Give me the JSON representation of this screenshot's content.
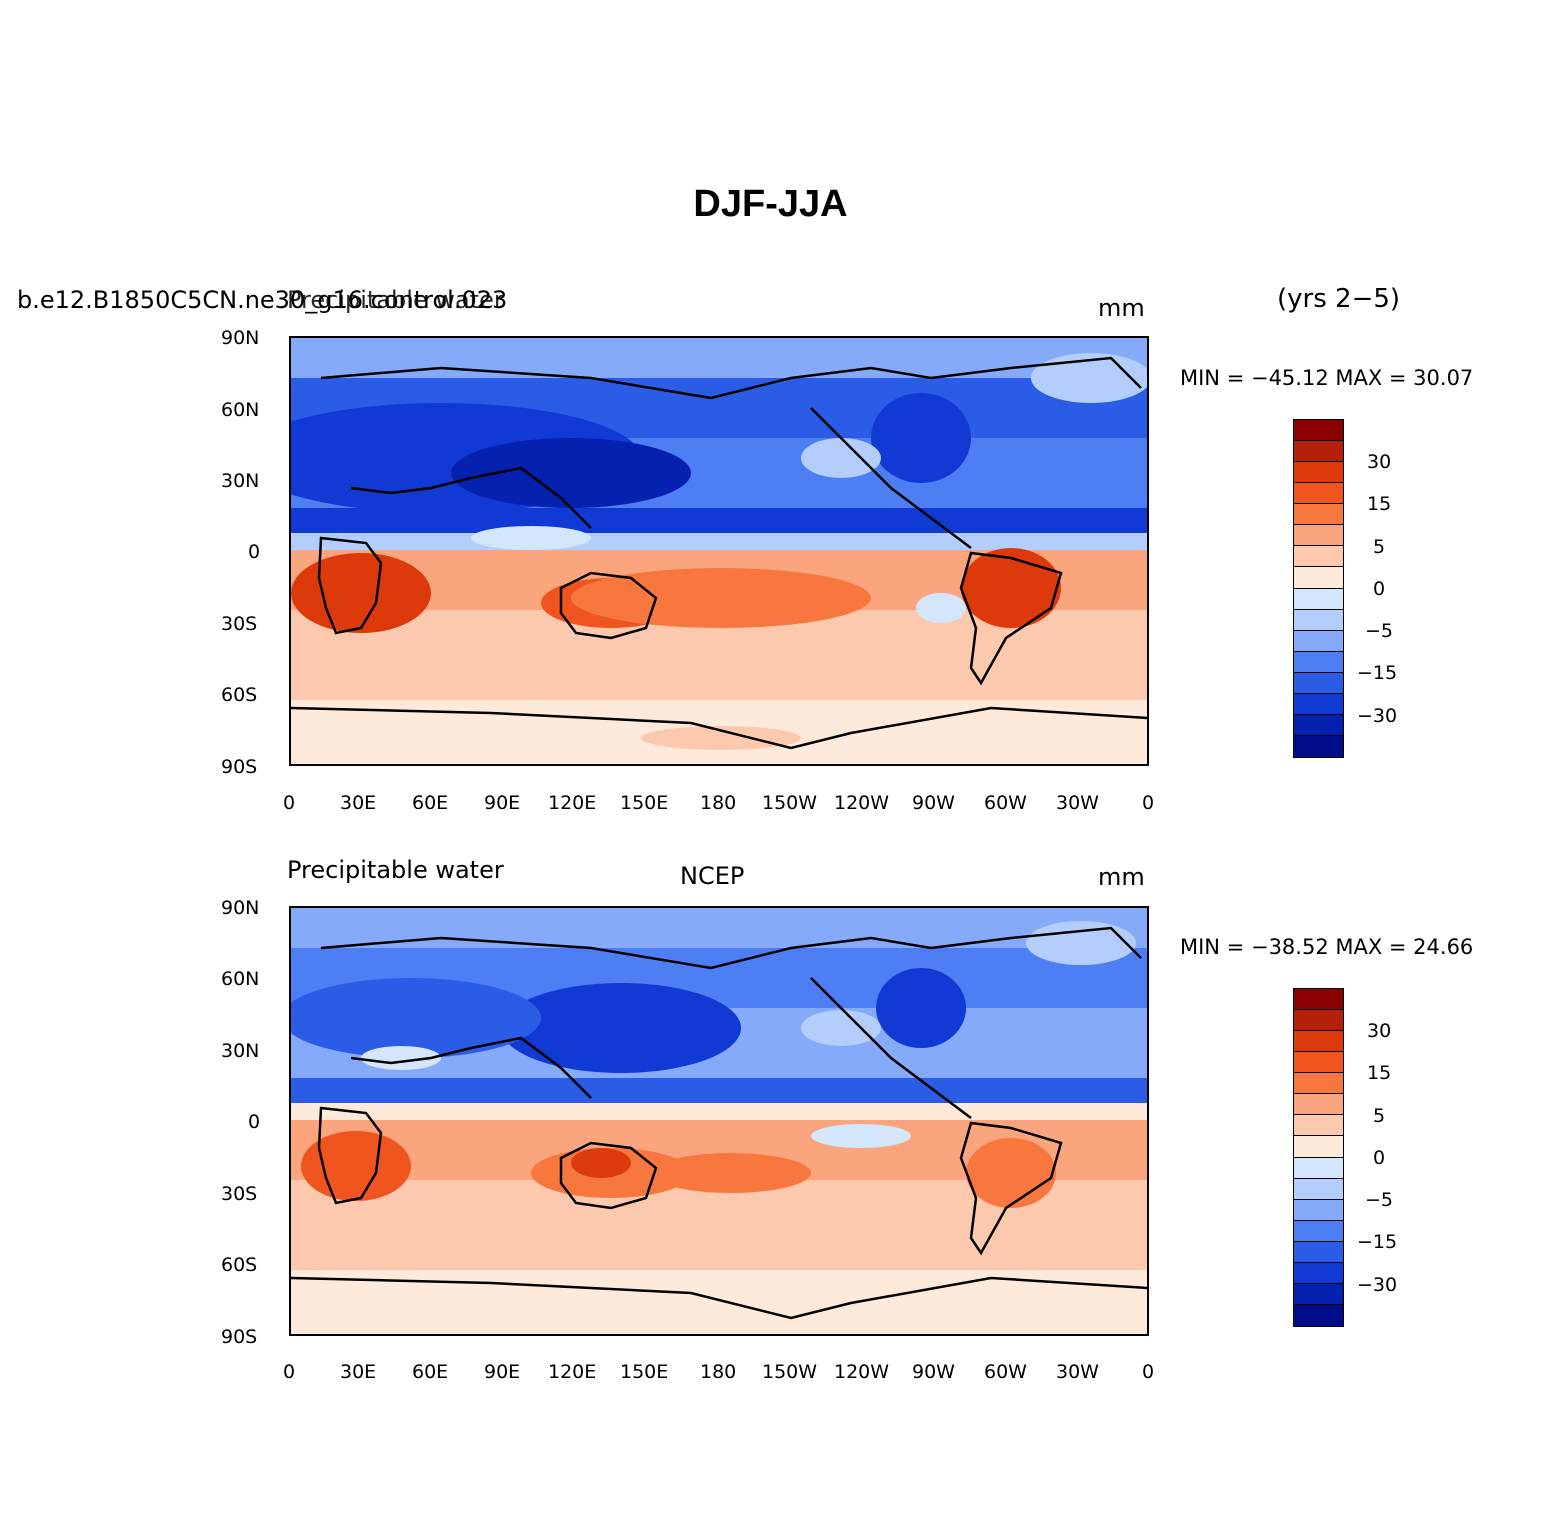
{
  "title": "DJF-JJA",
  "top": {
    "left_label": "b.e12.B1850C5CN.ne30_g16.control.023",
    "left_label_overlap": "Precipitable water",
    "right_label": "mm",
    "years": "(yrs 2−5)",
    "minmax": "MIN = −45.12  MAX =  30.07"
  },
  "bottom": {
    "left_label": "Precipitable water",
    "center_label": "NCEP",
    "right_label": "mm",
    "minmax": "MIN = −38.52  MAX =  24.66"
  },
  "lat_ticks": [
    "90N",
    "60N",
    "30N",
    "0",
    "30S",
    "60S",
    "90S"
  ],
  "lon_ticks": [
    "0",
    "30E",
    "60E",
    "90E",
    "120E",
    "150E",
    "180",
    "150W",
    "120W",
    "90W",
    "60W",
    "30W",
    "0"
  ],
  "colorbar": {
    "labels": [
      "30",
      "15",
      "5",
      "0",
      "−5",
      "−15",
      "−30"
    ],
    "colors": [
      "#8b0000",
      "#b5200b",
      "#dc3a0b",
      "#f0541f",
      "#f7773f",
      "#fba57f",
      "#fdc9ae",
      "#feeadb",
      "#d4e6fb",
      "#b3cdfc",
      "#85aaf9",
      "#4d7ef4",
      "#2a5ce6",
      "#1139d4",
      "#0521b0",
      "#000c8a"
    ]
  },
  "chart_data": {
    "type": "heatmap",
    "title": "DJF-JJA",
    "variable": "Precipitable water",
    "units": "mm",
    "contour_levels": [
      -40,
      -35,
      -30,
      -25,
      -20,
      -15,
      -10,
      -5,
      0,
      5,
      10,
      15,
      20,
      25,
      30
    ],
    "xlabel_ticks": [
      "0",
      "30E",
      "60E",
      "90E",
      "120E",
      "150E",
      "180",
      "150W",
      "120W",
      "90W",
      "60W",
      "30W",
      "0"
    ],
    "ylabel_ticks": [
      "90N",
      "60N",
      "30N",
      "0",
      "30S",
      "60S",
      "90S"
    ],
    "panels": [
      {
        "name": "b.e12.B1850C5CN.ne30_g16.control.023",
        "period": "(yrs 2−5)",
        "min": -45.12,
        "max": 30.07
      },
      {
        "name": "NCEP",
        "min": -38.52,
        "max": 24.66
      }
    ]
  }
}
